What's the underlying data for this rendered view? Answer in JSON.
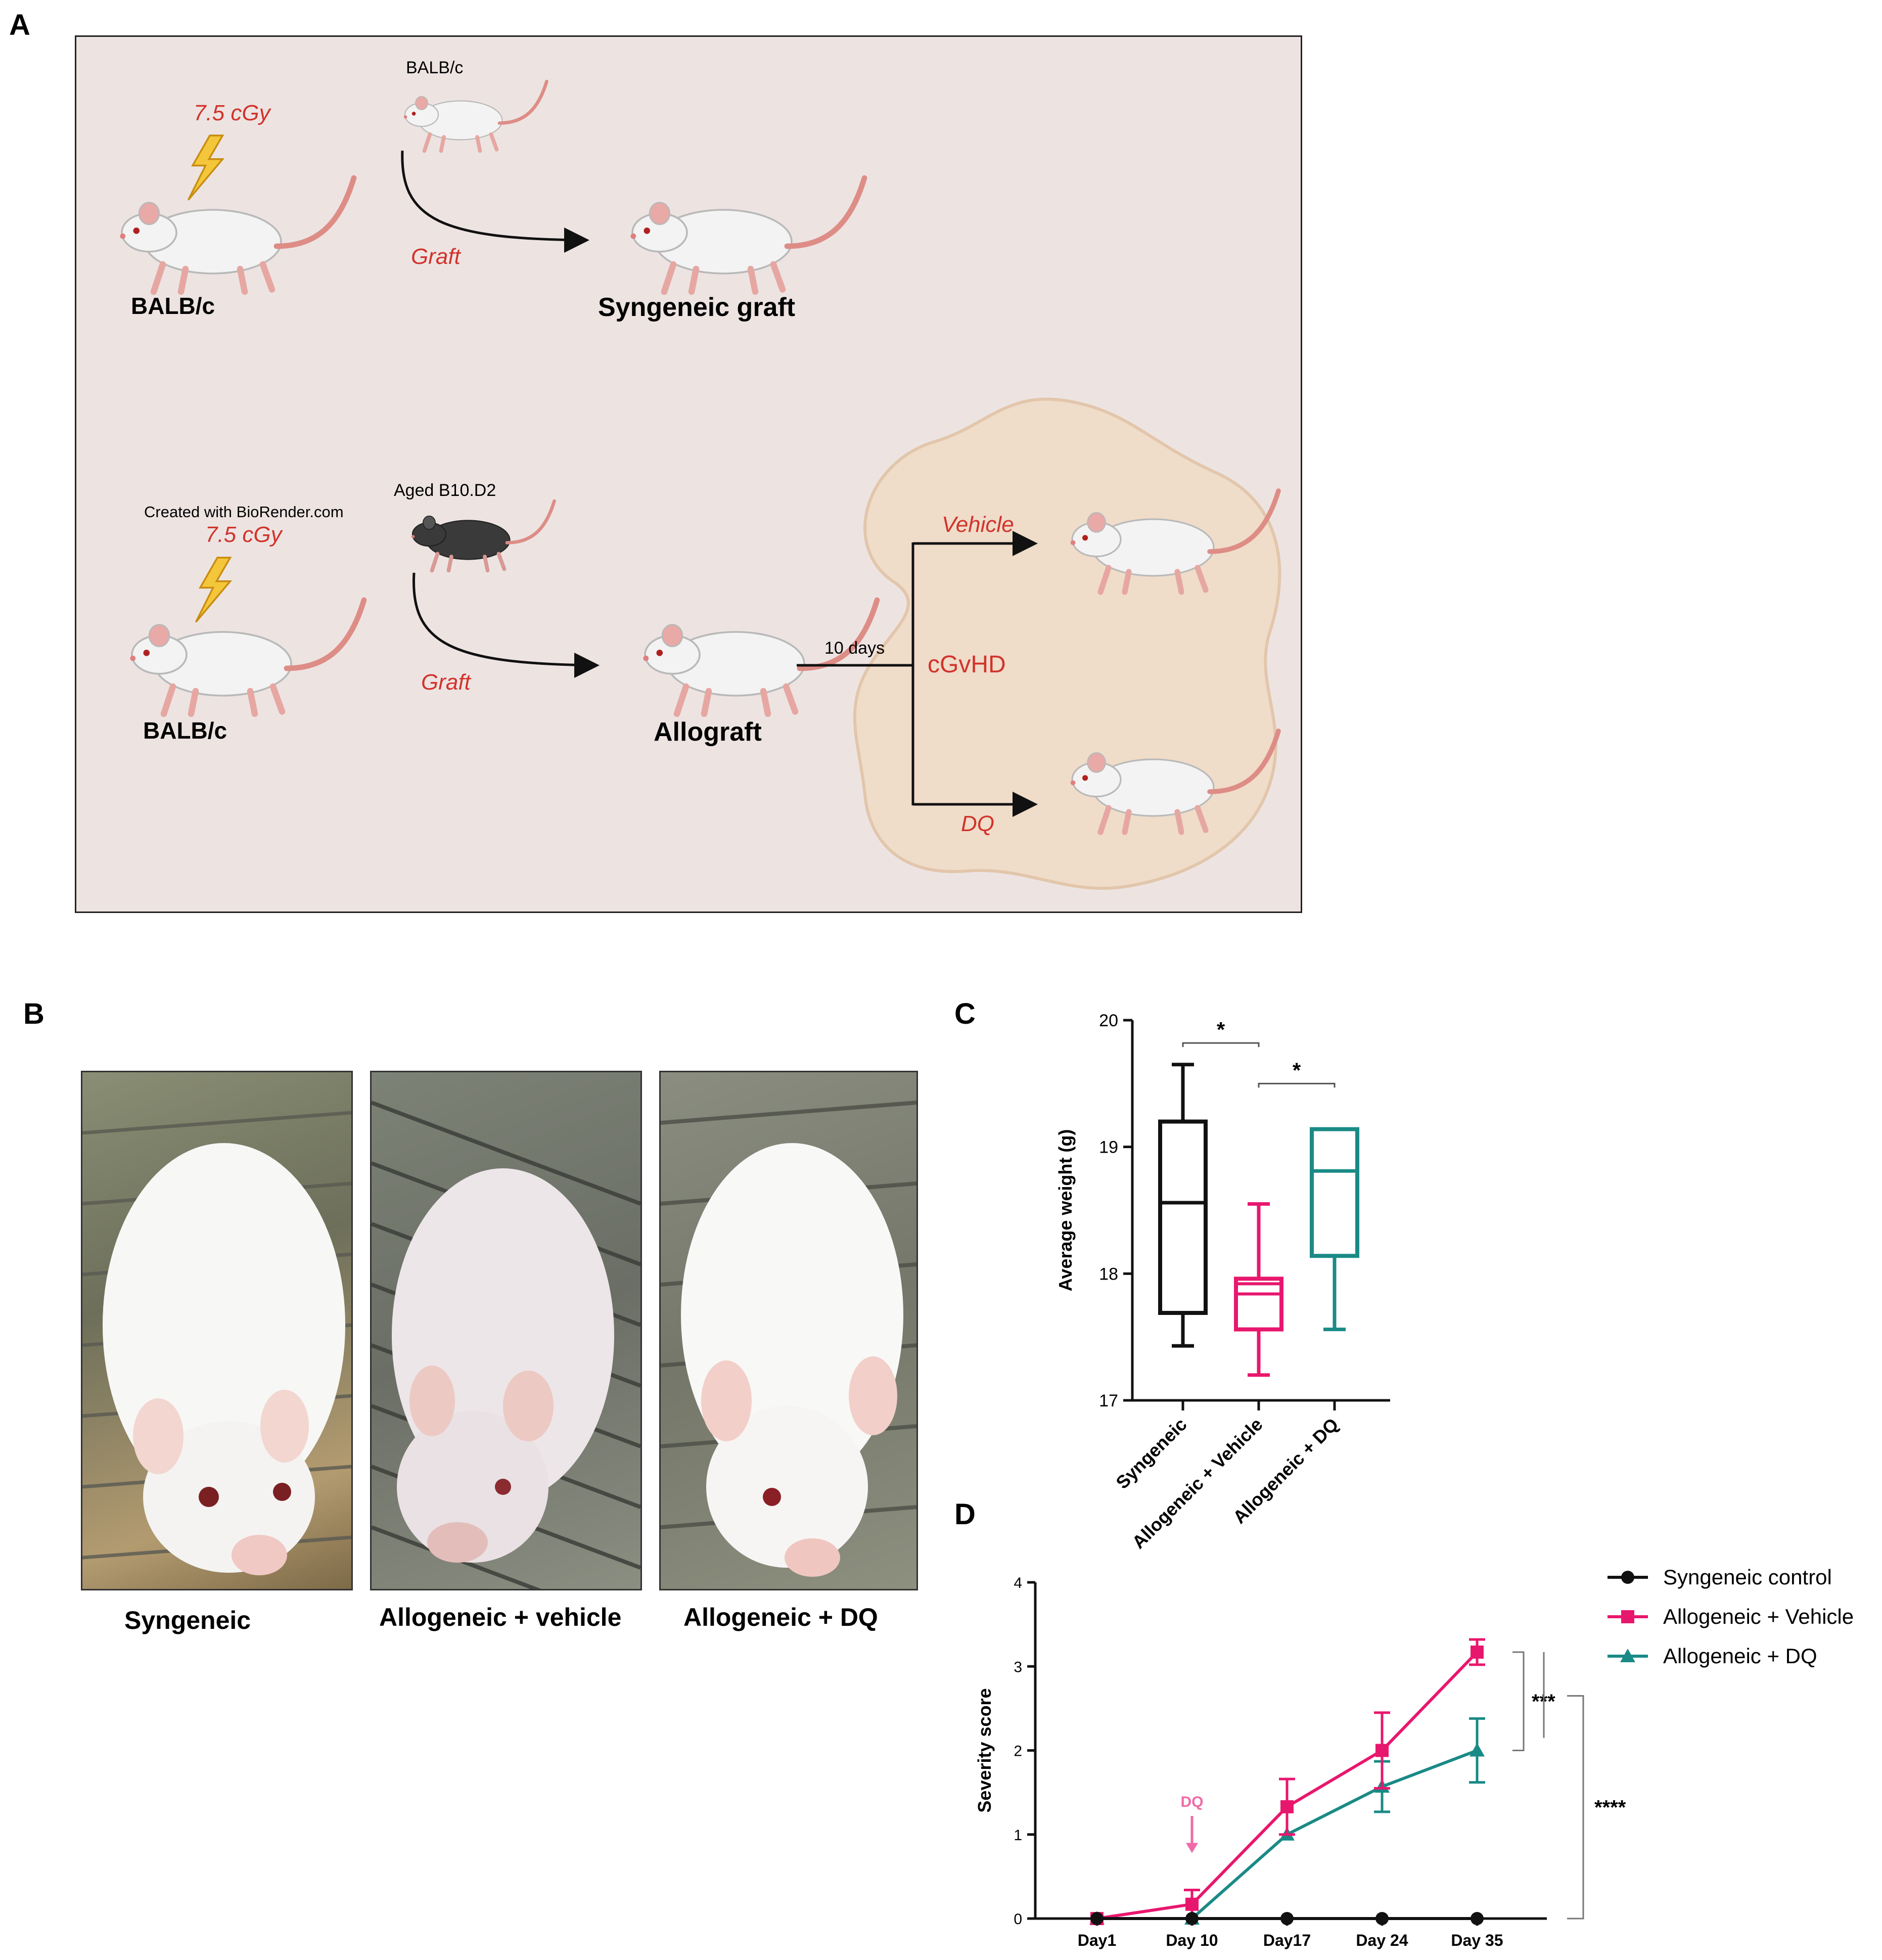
{
  "panels": {
    "a": "A",
    "b": "B",
    "c": "C",
    "d": "D"
  },
  "schematic": {
    "top": {
      "dose": "7.5 cGy",
      "donor": "BALB/c",
      "recipient": "BALB/c",
      "graft": "Graft",
      "result": "Syngeneic graft"
    },
    "bottom": {
      "credit": "Created with BioRender.com",
      "dose": "7.5 cGy",
      "donor": "Aged B10.D2",
      "recipient": "BALB/c",
      "graft": "Graft",
      "result": "Allograft",
      "interval": "10 days",
      "disease": "cGvHD",
      "arm_vehicle": "Vehicle",
      "arm_dq": "DQ"
    }
  },
  "photos": {
    "captions": [
      "Syngeneic",
      "Allogeneic + vehicle",
      "Allogeneic + DQ"
    ]
  },
  "chart_data": [
    {
      "type": "box",
      "ylabel": "Average weight (g)",
      "ylim": [
        17,
        20
      ],
      "yticks": [
        17,
        18,
        19,
        20
      ],
      "categories": [
        "Syngeneic",
        "Allogeneic + Vehicle",
        "Allogeneic + DQ"
      ],
      "colors": [
        "#111111",
        "#e8176e",
        "#1a8a86"
      ],
      "boxes": [
        {
          "min": 17.43,
          "q1": 17.69,
          "median": 18.56,
          "q3": 19.2,
          "max": 19.65
        },
        {
          "min": 17.2,
          "q1": 17.56,
          "median": 17.88,
          "q3": 17.96,
          "max": 18.55,
          "median_band": [
            17.84,
            17.92
          ]
        },
        {
          "min": 17.56,
          "q1": 18.14,
          "median": 18.81,
          "q3": 19.14,
          "max": 19.14
        }
      ],
      "significance": [
        {
          "between": [
            0,
            1
          ],
          "label": "*",
          "y": 19.82
        },
        {
          "between": [
            1,
            2
          ],
          "label": "*",
          "y": 19.5
        }
      ]
    },
    {
      "type": "line",
      "ylabel": "Severity score",
      "ylim": [
        0,
        4
      ],
      "yticks": [
        0,
        1,
        2,
        3,
        4
      ],
      "categories": [
        "Day1",
        "Day 10",
        "Day17",
        "Day 24",
        "Day 35"
      ],
      "series": [
        {
          "name": "Syngeneic control",
          "color": "#111111",
          "marker": "circle",
          "values": [
            0,
            0,
            0,
            0,
            0
          ],
          "err": [
            0,
            0,
            0,
            0,
            0
          ]
        },
        {
          "name": "Allogeneic + Vehicle",
          "color": "#e8176e",
          "marker": "square",
          "values": [
            0,
            0.17,
            1.33,
            2.0,
            3.17
          ],
          "err": [
            0,
            0.17,
            0.33,
            0.45,
            0.15
          ]
        },
        {
          "name": "Allogeneic + DQ",
          "color": "#1a8a86",
          "marker": "triangle",
          "values": [
            0,
            0,
            1.0,
            1.57,
            2.0
          ],
          "err": [
            0,
            0,
            0,
            0.3,
            0.38
          ]
        }
      ],
      "annotation": {
        "label": "DQ",
        "at": "Day 10",
        "color": "#f06aa8"
      },
      "significance": [
        {
          "label": "***",
          "range": [
            2.0,
            3.17
          ]
        },
        {
          "label": "****",
          "range": [
            0,
            2.65
          ]
        }
      ]
    }
  ]
}
